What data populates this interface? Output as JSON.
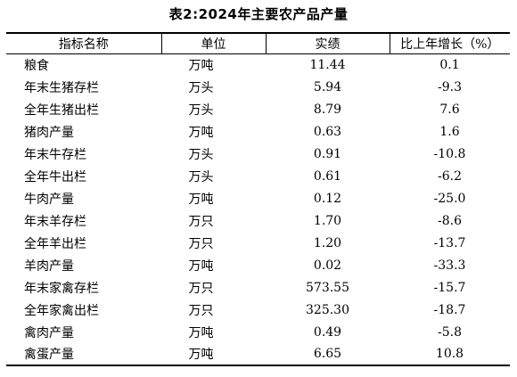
{
  "title": "表2:2024年主要农产品产量",
  "headers": [
    "指标名称",
    "单位",
    "实绩",
    "比上年增长（%）"
  ],
  "rows": [
    {
      "name": "粮食",
      "unit": "万吨",
      "value": "11.44",
      "change": "0.1"
    },
    {
      "name": "年末生猪存栏",
      "unit": "万头",
      "value": "5.94",
      "change": "-9.3"
    },
    {
      "name": "全年生猪出栏",
      "unit": "万头",
      "value": "8.79",
      "change": "7.6"
    },
    {
      "name": "猪肉产量",
      "unit": "万吨",
      "value": "0.63",
      "change": "1.6"
    },
    {
      "name": "年末牛存栏",
      "unit": "万头",
      "value": "0.91",
      "change": "-10.8"
    },
    {
      "name": "全年牛出栏",
      "unit": "万头",
      "value": "0.61",
      "change": "-6.2"
    },
    {
      "name": "牛肉产量",
      "unit": "万吨",
      "value": "0.12",
      "change": "-25.0"
    },
    {
      "name": "年末羊存栏",
      "unit": "万只",
      "value": "1.70",
      "change": "-8.6"
    },
    {
      "name": "全年羊出栏",
      "unit": "万只",
      "value": "1.20",
      "change": "-13.7"
    },
    {
      "name": "羊肉产量",
      "unit": "万吨",
      "value": "0.02",
      "change": "-33.3"
    },
    {
      "name": "年末家禽存栏",
      "unit": "万只",
      "value": "573.55",
      "change": "-15.7"
    },
    {
      "name": "全年家禽出栏",
      "unit": "万只",
      "value": "325.30",
      "change": "-18.7"
    },
    {
      "name": "禽肉产量",
      "unit": "万吨",
      "value": "0.49",
      "change": "-5.8"
    },
    {
      "name": "禽蛋产量",
      "unit": "万吨",
      "value": "6.65",
      "change": "10.8"
    }
  ]
}
